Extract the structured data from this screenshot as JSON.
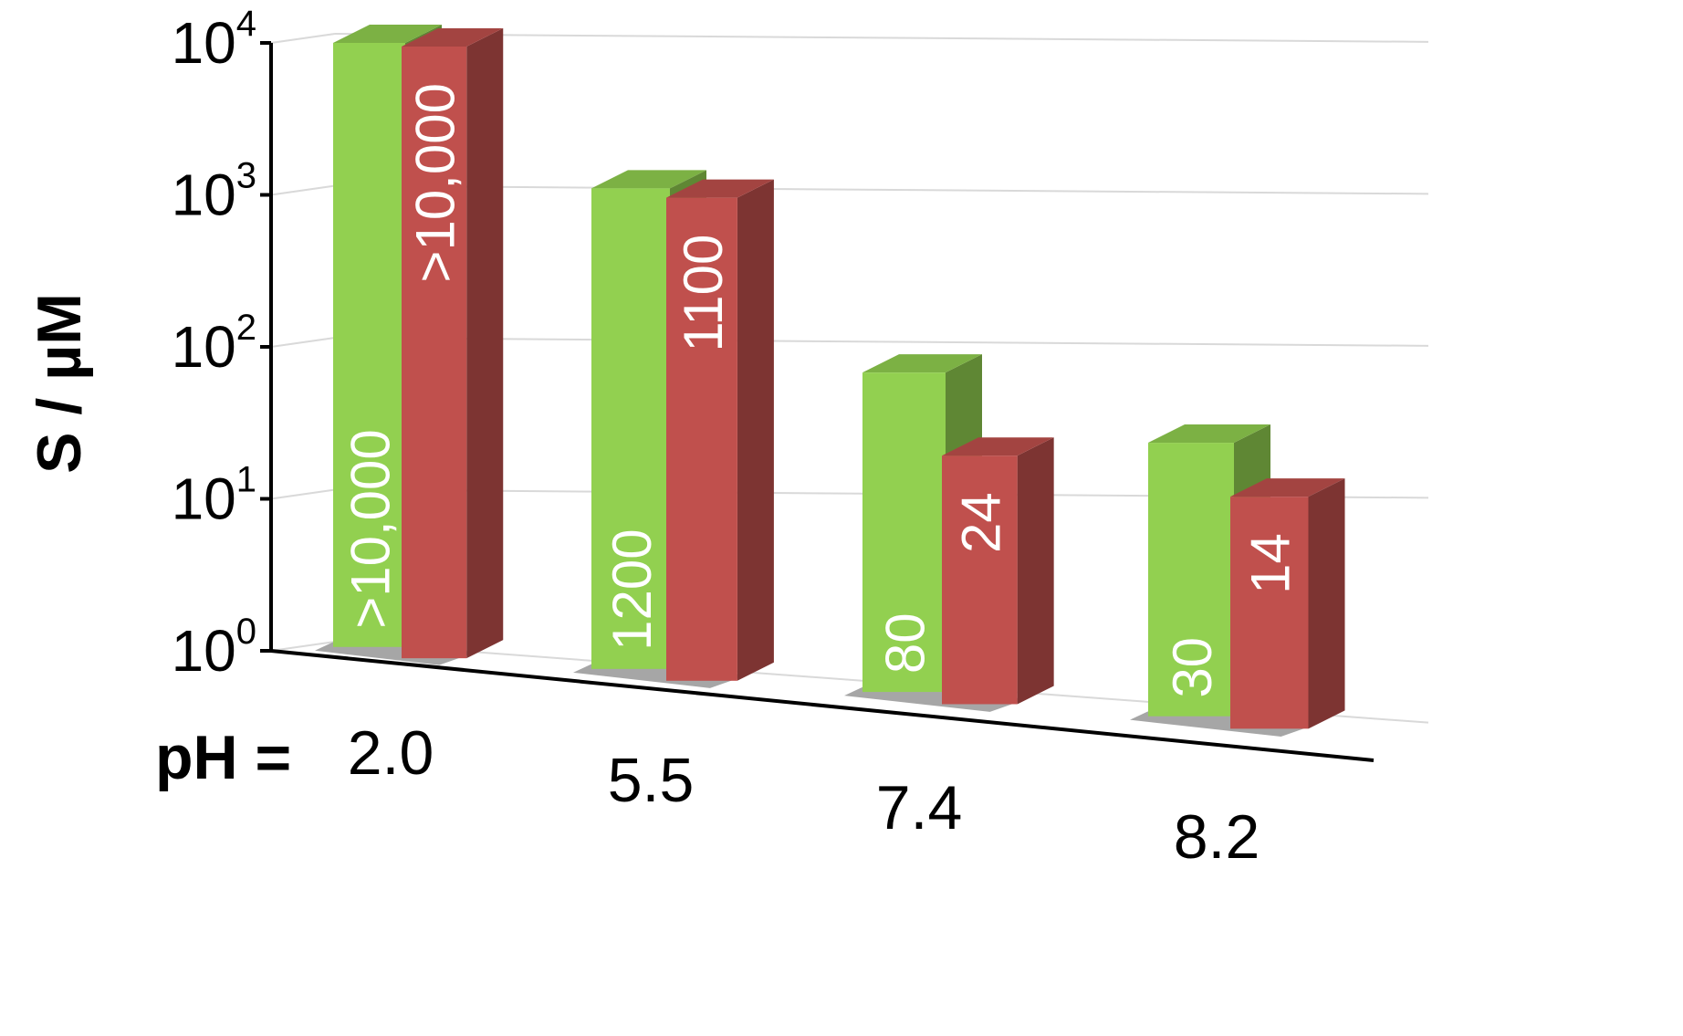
{
  "chart_data": {
    "type": "bar",
    "title": "",
    "ylabel": "S / µM",
    "xlabel_prefix": "pH =",
    "yscale": "log",
    "ylim": [
      1,
      10000
    ],
    "yticks": [
      {
        "value": 1,
        "base": "10",
        "exp": "0"
      },
      {
        "value": 10,
        "base": "10",
        "exp": "1"
      },
      {
        "value": 100,
        "base": "10",
        "exp": "2"
      },
      {
        "value": 1000,
        "base": "10",
        "exp": "3"
      },
      {
        "value": 10000,
        "base": "10",
        "exp": "4"
      }
    ],
    "categories": [
      "2.0",
      "5.5",
      "7.4",
      "8.2"
    ],
    "series": [
      {
        "color": "#92d050",
        "values": [
          10000,
          1200,
          80,
          30
        ],
        "labels": [
          ">10,000",
          "1200",
          "80",
          "30"
        ]
      },
      {
        "color": "#c0504d",
        "values": [
          10000,
          1100,
          24,
          14
        ],
        "labels": [
          ">10,000",
          "1100",
          "24",
          "14"
        ]
      }
    ],
    "grid": true,
    "legend": "none"
  }
}
